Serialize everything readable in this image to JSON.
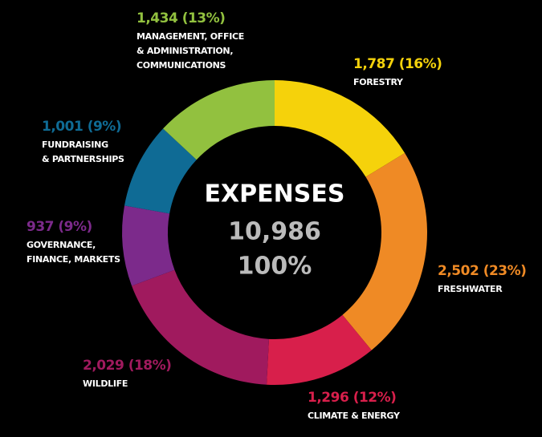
{
  "chart_data": {
    "type": "donut",
    "center_title": "EXPENSES",
    "total": {
      "value": 10986,
      "label": "10,986"
    },
    "total_percent": {
      "value": 100,
      "label": "100%"
    },
    "categories": [
      "FORESTRY",
      "FRESHWATER",
      "CLIMATE & ENERGY",
      "WILDLIFE",
      "GOVERNANCE,\nFINANCE, MARKETS",
      "FUNDRAISING\n& PARTNERSHIPS",
      "MANAGEMENT, OFFICE\n& ADMINISTRATION,\nCOMMUNICATIONS"
    ],
    "values": [
      1787,
      2502,
      1296,
      2029,
      937,
      1001,
      1434
    ],
    "value_labels": [
      "1,787 (16%)",
      "2,502 (23%)",
      "1,296 (12%)",
      "2,029 (18%)",
      "937 (9%)",
      "1,001 (9%)",
      "1,434 (13%)"
    ],
    "colors": [
      "#f5d20b",
      "#ef8a25",
      "#d81f4b",
      "#a01a5e",
      "#7c2a8b",
      "#0f6b95",
      "#92c13f"
    ]
  }
}
